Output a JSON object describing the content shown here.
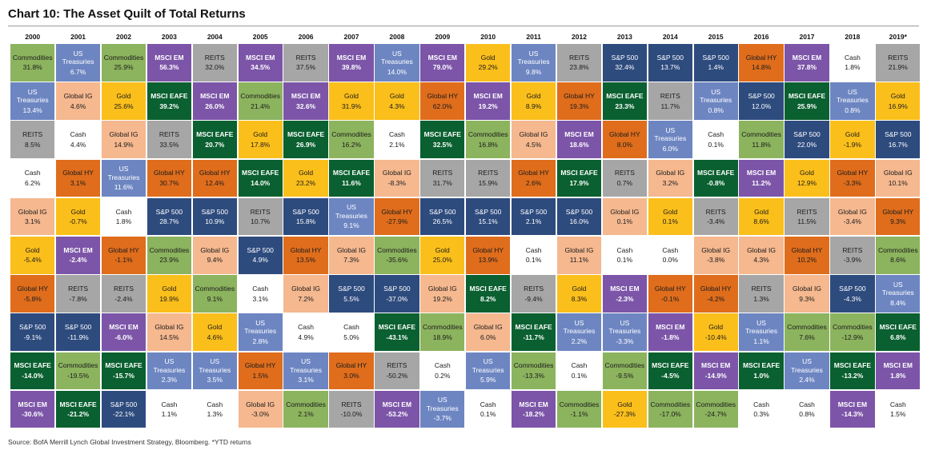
{
  "title": "Chart 10: The Asset Quilt of Total Returns",
  "source": "Source: BofA Merrill Lynch Global Investment Strategy, Bloomberg. *YTD returns",
  "colors": {
    "Commodities": "#8cb35e",
    "US Treasuries": "#6d86c2",
    "REITS": "#a6a6a6",
    "Global IG": "#f5b88f",
    "Gold": "#fbbf1b",
    "MSCI EM": "#7c55a8",
    "MSCI EAFE": "#0a6030",
    "Global HY": "#df6d1c",
    "S&P 500": "#2e4b7e",
    "Cash": "#ffffff"
  },
  "text_colors": {
    "Commodities": "#1c1c1c",
    "US Treasuries": "#ffffff",
    "REITS": "#1c1c1c",
    "Global IG": "#1c1c1c",
    "Gold": "#1c1c1c",
    "MSCI EM": "#ffffff",
    "MSCI EAFE": "#ffffff",
    "Global HY": "#1c1c1c",
    "S&P 500": "#ffffff",
    "Cash": "#1c1c1c"
  },
  "chart_data": {
    "type": "table",
    "title": "Chart 10: The Asset Quilt of Total Returns",
    "years": [
      "2000",
      "2001",
      "2002",
      "2003",
      "2004",
      "2005",
      "2006",
      "2007",
      "2008",
      "2009",
      "2010",
      "2011",
      "2012",
      "2013",
      "2014",
      "2015",
      "2016",
      "2017",
      "2018",
      "2019*"
    ],
    "columns": [
      [
        [
          "Commodities",
          "31.8%"
        ],
        [
          "US Treasuries",
          "13.4%"
        ],
        [
          "REITS",
          "8.5%"
        ],
        [
          "Cash",
          "6.2%"
        ],
        [
          "Global IG",
          "3.1%"
        ],
        [
          "Gold",
          "-5.4%"
        ],
        [
          "Global HY",
          "-5.8%"
        ],
        [
          "S&P 500",
          "-9.1%"
        ],
        [
          "MSCI EAFE",
          "-14.0%"
        ],
        [
          "MSCI EM",
          "-30.6%"
        ]
      ],
      [
        [
          "US Treasuries",
          "6.7%"
        ],
        [
          "Global IG",
          "4.6%"
        ],
        [
          "Cash",
          "4.4%"
        ],
        [
          "Global HY",
          "3.1%"
        ],
        [
          "Gold",
          "-0.7%"
        ],
        [
          "MSCI EM",
          "-2.4%"
        ],
        [
          "REITS",
          "-7.8%"
        ],
        [
          "S&P 500",
          "-11.9%"
        ],
        [
          "Commodities",
          "-19.5%"
        ],
        [
          "MSCI EAFE",
          "-21.2%"
        ]
      ],
      [
        [
          "Commodities",
          "25.9%"
        ],
        [
          "Gold",
          "25.6%"
        ],
        [
          "Global IG",
          "14.9%"
        ],
        [
          "US Treasuries",
          "11.6%"
        ],
        [
          "Cash",
          "1.8%"
        ],
        [
          "Global HY",
          "-1.1%"
        ],
        [
          "REITS",
          "-2.4%"
        ],
        [
          "MSCI EM",
          "-6.0%"
        ],
        [
          "MSCI EAFE",
          "-15.7%"
        ],
        [
          "S&P 500",
          "-22.1%"
        ]
      ],
      [
        [
          "MSCI EM",
          "56.3%"
        ],
        [
          "MSCI EAFE",
          "39.2%"
        ],
        [
          "REITS",
          "33.5%"
        ],
        [
          "Global HY",
          "30.7%"
        ],
        [
          "S&P 500",
          "28.7%"
        ],
        [
          "Commodities",
          "23.9%"
        ],
        [
          "Gold",
          "19.9%"
        ],
        [
          "Global IG",
          "14.5%"
        ],
        [
          "US Treasuries",
          "2.3%"
        ],
        [
          "Cash",
          "1.1%"
        ]
      ],
      [
        [
          "REITS",
          "32.0%"
        ],
        [
          "MSCI EM",
          "26.0%"
        ],
        [
          "MSCI EAFE",
          "20.7%"
        ],
        [
          "Global HY",
          "12.4%"
        ],
        [
          "S&P 500",
          "10.9%"
        ],
        [
          "Global IG",
          "9.4%"
        ],
        [
          "Commodities",
          "9.1%"
        ],
        [
          "Gold",
          "4.6%"
        ],
        [
          "US Treasuries",
          "3.5%"
        ],
        [
          "Cash",
          "1.3%"
        ]
      ],
      [
        [
          "MSCI EM",
          "34.5%"
        ],
        [
          "Commodities",
          "21.4%"
        ],
        [
          "Gold",
          "17.8%"
        ],
        [
          "MSCI EAFE",
          "14.0%"
        ],
        [
          "REITS",
          "10.7%"
        ],
        [
          "S&P 500",
          "4.9%"
        ],
        [
          "Cash",
          "3.1%"
        ],
        [
          "US Treasuries",
          "2.8%"
        ],
        [
          "Global HY",
          "1.5%"
        ],
        [
          "Global IG",
          "-3.0%"
        ]
      ],
      [
        [
          "REITS",
          "37.5%"
        ],
        [
          "MSCI EM",
          "32.6%"
        ],
        [
          "MSCI EAFE",
          "26.9%"
        ],
        [
          "Gold",
          "23.2%"
        ],
        [
          "S&P 500",
          "15.8%"
        ],
        [
          "Global HY",
          "13.5%"
        ],
        [
          "Global IG",
          "7.2%"
        ],
        [
          "Cash",
          "4.9%"
        ],
        [
          "US Treasuries",
          "3.1%"
        ],
        [
          "Commodities",
          "2.1%"
        ]
      ],
      [
        [
          "MSCI EM",
          "39.8%"
        ],
        [
          "Gold",
          "31.9%"
        ],
        [
          "Commodities",
          "16.2%"
        ],
        [
          "MSCI EAFE",
          "11.6%"
        ],
        [
          "US Treasuries",
          "9.1%"
        ],
        [
          "Global IG",
          "7.3%"
        ],
        [
          "S&P 500",
          "5.5%"
        ],
        [
          "Cash",
          "5.0%"
        ],
        [
          "Global HY",
          "3.0%"
        ],
        [
          "REITS",
          "-10.0%"
        ]
      ],
      [
        [
          "US Treasuries",
          "14.0%"
        ],
        [
          "Gold",
          "4.3%"
        ],
        [
          "Cash",
          "2.1%"
        ],
        [
          "Global IG",
          "-8.3%"
        ],
        [
          "Global HY",
          "-27.9%"
        ],
        [
          "Commodities",
          "-35.6%"
        ],
        [
          "S&P 500",
          "-37.0%"
        ],
        [
          "MSCI EAFE",
          "-43.1%"
        ],
        [
          "REITS",
          "-50.2%"
        ],
        [
          "MSCI EM",
          "-53.2%"
        ]
      ],
      [
        [
          "MSCI EM",
          "79.0%"
        ],
        [
          "Global HY",
          "62.0%"
        ],
        [
          "MSCI EAFE",
          "32.5%"
        ],
        [
          "REITS",
          "31.7%"
        ],
        [
          "S&P 500",
          "26.5%"
        ],
        [
          "Gold",
          "25.0%"
        ],
        [
          "Global IG",
          "19.2%"
        ],
        [
          "Commodities",
          "18.9%"
        ],
        [
          "Cash",
          "0.2%"
        ],
        [
          "US Treasuries",
          "-3.7%"
        ]
      ],
      [
        [
          "Gold",
          "29.2%"
        ],
        [
          "MSCI EM",
          "19.2%"
        ],
        [
          "Commodities",
          "16.8%"
        ],
        [
          "REITS",
          "15.9%"
        ],
        [
          "S&P 500",
          "15.1%"
        ],
        [
          "Global HY",
          "13.9%"
        ],
        [
          "MSCI EAFE",
          "8.2%"
        ],
        [
          "Global IG",
          "6.0%"
        ],
        [
          "US Treasuries",
          "5.9%"
        ],
        [
          "Cash",
          "0.1%"
        ]
      ],
      [
        [
          "US Treasuries",
          "9.8%"
        ],
        [
          "Gold",
          "8.9%"
        ],
        [
          "Global IG",
          "4.5%"
        ],
        [
          "Global HY",
          "2.6%"
        ],
        [
          "S&P 500",
          "2.1%"
        ],
        [
          "Cash",
          "0.1%"
        ],
        [
          "REITS",
          "-9.4%"
        ],
        [
          "MSCI EAFE",
          "-11.7%"
        ],
        [
          "Commodities",
          "-13.3%"
        ],
        [
          "MSCI EM",
          "-18.2%"
        ]
      ],
      [
        [
          "REITS",
          "23.8%"
        ],
        [
          "Global HY",
          "19.3%"
        ],
        [
          "MSCI EM",
          "18.6%"
        ],
        [
          "MSCI EAFE",
          "17.9%"
        ],
        [
          "S&P 500",
          "16.0%"
        ],
        [
          "Global IG",
          "11.1%"
        ],
        [
          "Gold",
          "8.3%"
        ],
        [
          "US Treasuries",
          "2.2%"
        ],
        [
          "Cash",
          "0.1%"
        ],
        [
          "Commodities",
          "-1.1%"
        ]
      ],
      [
        [
          "S&P 500",
          "32.4%"
        ],
        [
          "MSCI EAFE",
          "23.3%"
        ],
        [
          "Global HY",
          "8.0%"
        ],
        [
          "REITS",
          "0.7%"
        ],
        [
          "Global IG",
          "0.1%"
        ],
        [
          "Cash",
          "0.1%"
        ],
        [
          "MSCI EM",
          "-2.3%"
        ],
        [
          "US Treasuries",
          "-3.3%"
        ],
        [
          "Commodities",
          "-9.5%"
        ],
        [
          "Gold",
          "-27.3%"
        ]
      ],
      [
        [
          "S&P 500",
          "13.7%"
        ],
        [
          "REITS",
          "11.7%"
        ],
        [
          "US Treasuries",
          "6.0%"
        ],
        [
          "Global IG",
          "3.2%"
        ],
        [
          "Gold",
          "0.1%"
        ],
        [
          "Cash",
          "0.0%"
        ],
        [
          "Global HY",
          "-0.1%"
        ],
        [
          "MSCI EM",
          "-1.8%"
        ],
        [
          "MSCI EAFE",
          "-4.5%"
        ],
        [
          "Commodities",
          "-17.0%"
        ]
      ],
      [
        [
          "S&P 500",
          "1.4%"
        ],
        [
          "US Treasuries",
          "0.8%"
        ],
        [
          "Cash",
          "0.1%"
        ],
        [
          "MSCI EAFE",
          "-0.8%"
        ],
        [
          "REITS",
          "-3.4%"
        ],
        [
          "Global IG",
          "-3.8%"
        ],
        [
          "Global HY",
          "-4.2%"
        ],
        [
          "Gold",
          "-10.4%"
        ],
        [
          "MSCI EM",
          "-14.9%"
        ],
        [
          "Commodities",
          "-24.7%"
        ]
      ],
      [
        [
          "Global HY",
          "14.8%"
        ],
        [
          "S&P 500",
          "12.0%"
        ],
        [
          "Commodities",
          "11.8%"
        ],
        [
          "MSCI EM",
          "11.2%"
        ],
        [
          "Gold",
          "8.6%"
        ],
        [
          "Global IG",
          "4.3%"
        ],
        [
          "REITS",
          "1.3%"
        ],
        [
          "US Treasuries",
          "1.1%"
        ],
        [
          "MSCI EAFE",
          "1.0%"
        ],
        [
          "Cash",
          "0.3%"
        ]
      ],
      [
        [
          "MSCI EM",
          "37.8%"
        ],
        [
          "MSCI EAFE",
          "25.9%"
        ],
        [
          "S&P 500",
          "22.0%"
        ],
        [
          "Gold",
          "12.9%"
        ],
        [
          "REITS",
          "11.5%"
        ],
        [
          "Global HY",
          "10.2%"
        ],
        [
          "Global IG",
          "9.3%"
        ],
        [
          "Commodities",
          "7.6%"
        ],
        [
          "US Treasuries",
          "2.4%"
        ],
        [
          "Cash",
          "0.8%"
        ]
      ],
      [
        [
          "Cash",
          "1.8%"
        ],
        [
          "US Treasuries",
          "0.8%"
        ],
        [
          "Gold",
          "-1.9%"
        ],
        [
          "Global HY",
          "-3.3%"
        ],
        [
          "Global IG",
          "-3.4%"
        ],
        [
          "REITS",
          "-3.9%"
        ],
        [
          "S&P 500",
          "-4.3%"
        ],
        [
          "Commodities",
          "-12.9%"
        ],
        [
          "MSCI EAFE",
          "-13.2%"
        ],
        [
          "MSCI EM",
          "-14.3%"
        ]
      ],
      [
        [
          "REITS",
          "21.9%"
        ],
        [
          "Gold",
          "16.9%"
        ],
        [
          "S&P 500",
          "16.7%"
        ],
        [
          "Global IG",
          "10.1%"
        ],
        [
          "Global HY",
          "9.3%"
        ],
        [
          "Commodities",
          "8.6%"
        ],
        [
          "US Treasuries",
          "8.4%"
        ],
        [
          "MSCI EAFE",
          "6.8%"
        ],
        [
          "MSCI EM",
          "1.8%"
        ],
        [
          "Cash",
          "1.5%"
        ]
      ]
    ]
  }
}
